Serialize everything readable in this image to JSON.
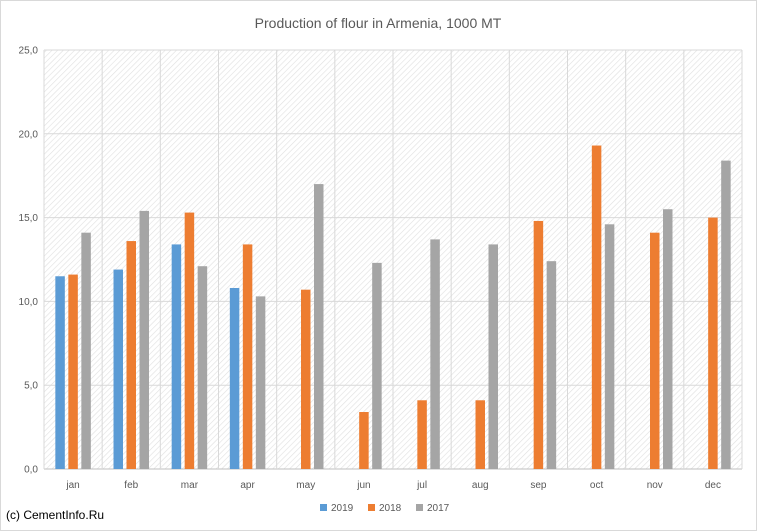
{
  "chart_data": {
    "type": "bar",
    "title": "Production of flour in Armenia, 1000 MT",
    "xlabel": "",
    "ylabel": "",
    "categories": [
      "jan",
      "feb",
      "mar",
      "apr",
      "may",
      "jun",
      "jul",
      "aug",
      "sep",
      "oct",
      "nov",
      "dec"
    ],
    "series": [
      {
        "name": "2019",
        "color": "#5b9bd5",
        "values": [
          11.5,
          11.9,
          13.4,
          10.8,
          null,
          null,
          null,
          null,
          null,
          null,
          null,
          null
        ]
      },
      {
        "name": "2018",
        "color": "#ed7d31",
        "values": [
          11.6,
          13.6,
          15.3,
          13.4,
          10.7,
          3.4,
          4.1,
          4.1,
          14.8,
          19.3,
          14.1,
          15.0
        ]
      },
      {
        "name": "2017",
        "color": "#a5a5a5",
        "values": [
          14.1,
          15.4,
          12.1,
          10.3,
          17.0,
          12.3,
          13.7,
          13.4,
          12.4,
          14.6,
          15.5,
          18.4
        ]
      }
    ],
    "ylim": [
      0,
      25
    ],
    "yticks": [
      "0,0",
      "5,0",
      "10,0",
      "15,0",
      "20,0",
      "25,0"
    ],
    "grid": true,
    "legend": "bottom"
  },
  "footer": {
    "credit": "(c) CementInfo.Ru"
  }
}
